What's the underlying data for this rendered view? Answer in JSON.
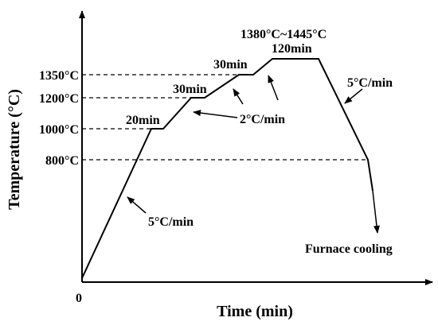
{
  "diagram": {
    "axes": {
      "x_title": "Time (min)",
      "y_title": "Temperature (°C)",
      "origin_label": "0"
    },
    "y_ticks": [
      {
        "label": "1350°C",
        "value": 1350
      },
      {
        "label": "1200°C",
        "value": 1200
      },
      {
        "label": "1000°C",
        "value": 1000
      },
      {
        "label": "800°C",
        "value": 800
      }
    ],
    "segments": [
      {
        "label": "20min"
      },
      {
        "label": "30min"
      },
      {
        "label": "30min"
      },
      {
        "label": "120min"
      }
    ],
    "annotations": {
      "sinter_range": "1380°C~1445°C",
      "rate_heat_fast": "5°C/min",
      "rate_heat_slow": "2°C/min",
      "rate_cool": "5°C/min",
      "furnace_cooling": "Furnace cooling"
    },
    "colors": {
      "line": "#000000",
      "background": "#ffffff"
    }
  }
}
